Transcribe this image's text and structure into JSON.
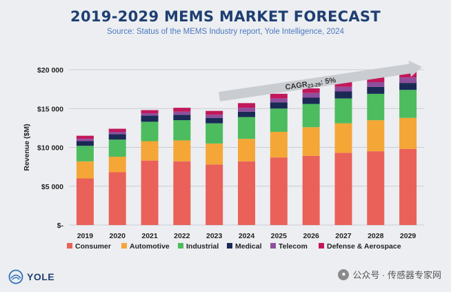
{
  "title": "2019-2029 MEMS MARKET FORECAST",
  "subtitle": "Source: Status of the MEMS Industry report, Yole Intelligence, 2024",
  "brand": "YOLE",
  "watermark": "公众号 · 传感器专家网",
  "annotation": {
    "text_main": "CAGR",
    "text_sub": "23-29",
    "text_tail": ": 5%"
  },
  "colors": {
    "Consumer": "#ea6159",
    "Automotive": "#f4a637",
    "Industrial": "#4cbc5f",
    "Medical": "#1a2a55",
    "Telecom": "#8e4f9c",
    "Defense & Aerospace": "#c2185b",
    "grid": "#c9ccd2",
    "axis_text": "#222222",
    "arrow": "#c9ccd1"
  },
  "chart_data": {
    "type": "bar",
    "stacked": true,
    "title": "2019-2029 MEMS MARKET FORECAST",
    "subtitle": "Source: Status of the MEMS Industry report, Yole Intelligence, 2024",
    "xlabel": "",
    "ylabel": "Revenue ($M)",
    "ylim": [
      0,
      20000
    ],
    "yticks": [
      0,
      5000,
      10000,
      15000,
      20000
    ],
    "ytick_labels": [
      "$-",
      "$5 000",
      "$10 000",
      "$15 000",
      "$20 000"
    ],
    "grid": true,
    "legend_position": "bottom",
    "categories": [
      "2019",
      "2020",
      "2021",
      "2022",
      "2023",
      "2024",
      "2025",
      "2026",
      "2027",
      "2028",
      "2029"
    ],
    "series": [
      {
        "name": "Consumer",
        "values": [
          6000,
          6800,
          8300,
          8200,
          7800,
          8200,
          8700,
          8900,
          9300,
          9500,
          9800
        ]
      },
      {
        "name": "Automotive",
        "values": [
          2200,
          2000,
          2500,
          2700,
          2700,
          2900,
          3300,
          3700,
          3800,
          4000,
          4000
        ]
      },
      {
        "name": "Industrial",
        "values": [
          2000,
          2200,
          2500,
          2600,
          2600,
          2800,
          3000,
          3000,
          3200,
          3400,
          3600
        ]
      },
      {
        "name": "Medical",
        "values": [
          600,
          700,
          800,
          700,
          700,
          700,
          800,
          800,
          900,
          900,
          900
        ]
      },
      {
        "name": "Telecom",
        "values": [
          300,
          300,
          300,
          400,
          400,
          500,
          500,
          600,
          600,
          600,
          700
        ]
      },
      {
        "name": "Defense & Aerospace",
        "values": [
          400,
          400,
          400,
          500,
          500,
          600,
          600,
          600,
          700,
          700,
          800
        ]
      }
    ]
  }
}
